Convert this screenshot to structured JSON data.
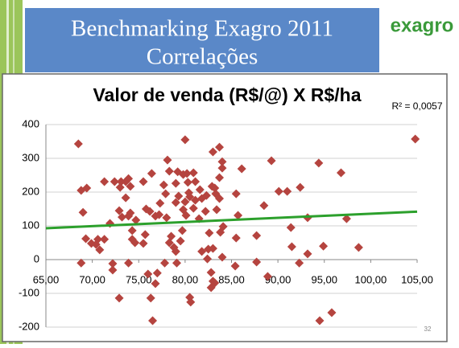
{
  "slide": {
    "title_lines": [
      "Benchmarking Exagro 2011",
      "Correlações"
    ],
    "logo": "exagro",
    "page_number": 32
  },
  "chart_data": {
    "type": "scatter",
    "title": "Valor de venda (R$/@) X R$/ha",
    "annotation": "R² = 0,0057",
    "color": "#b5443f",
    "x": [
      68.5,
      68.8,
      69.0,
      69.4,
      68.8,
      69.3,
      69.9,
      70.4,
      70.6,
      70.8,
      71.3,
      71.3,
      71.9,
      72.4,
      72.2,
      72.2,
      72.9,
      73.1,
      73.0,
      73.2,
      73.6,
      73.6,
      73.9,
      74.1,
      73.9,
      73.9,
      74.1,
      74.3,
      74.3,
      74.7,
      74.6,
      72.9,
      75.5,
      75.5,
      75.7,
      75.8,
      76.2,
      76.0,
      76.4,
      76.3,
      76.5,
      76.8,
      77.0,
      76.8,
      77.2,
      77.3,
      77.7,
      77.8,
      77.9,
      78.0,
      78.1,
      78.3,
      78.3,
      78.5,
      78.8,
      79.0,
      79.1,
      79.0,
      79.0,
      79.3,
      79.2,
      79.5,
      79.7,
      79.8,
      79.8,
      80.0,
      80.0,
      80.1,
      80.2,
      80.3,
      80.4,
      80.5,
      80.5,
      80.6,
      80.9,
      81.1,
      80.9,
      81.1,
      81.5,
      81.6,
      81.8,
      81.8,
      82.2,
      82.3,
      82.4,
      82.5,
      82.6,
      82.8,
      82.8,
      83.0,
      82.9,
      83.0,
      83.2,
      83.0,
      83.2,
      83.3,
      83.4,
      83.7,
      83.7,
      83.7,
      84.0,
      84.0,
      83.8,
      84.1,
      84.0,
      85.5,
      85.5,
      85.4,
      85.7,
      86.1,
      87.7,
      87.7,
      88.5,
      88.9,
      89.3,
      90.1,
      91.0,
      91.4,
      91.5,
      92.3,
      92.4,
      93.2,
      93.2,
      94.4,
      94.5,
      94.9,
      95.8,
      96.8,
      97.4,
      98.7,
      104.8
    ],
    "values": [
      343,
      205,
      140,
      212,
      -10,
      62,
      48,
      45,
      60,
      29,
      60,
      231,
      107,
      231,
      -12,
      -31,
      145,
      231,
      214,
      126,
      183,
      231,
      240,
      217,
      -10,
      129,
      138,
      86,
      60,
      117,
      50,
      -114,
      48,
      231,
      74,
      150,
      143,
      -43,
      255,
      -114,
      -181,
      -71,
      -40,
      129,
      133,
      167,
      221,
      -10,
      195,
      124,
      295,
      262,
      50,
      69,
      36,
      24,
      -10,
      169,
      226,
      188,
      260,
      55,
      86,
      148,
      252,
      355,
      171,
      131,
      255,
      229,
      198,
      186,
      -112,
      -126,
      152,
      176,
      257,
      231,
      121,
      207,
      181,
      24,
      143,
      190,
      2,
      31,
      79,
      -38,
      -83,
      -64,
      217,
      33,
      212,
      319,
      -69,
      195,
      148,
      333,
      243,
      181,
      290,
      271,
      81,
      98,
      7,
      195,
      64,
      -19,
      131,
      269,
      -7,
      71,
      160,
      -50,
      293,
      202,
      202,
      95,
      38,
      -10,
      214,
      124,
      17,
      286,
      -181,
      40,
      -157,
      257,
      121,
      36,
      357
    ],
    "trendline": {
      "color": "#2ca02c",
      "x": [
        65,
        105
      ],
      "values": [
        93,
        142
      ]
    },
    "xlim": [
      65,
      105
    ],
    "ylim": [
      -200,
      400
    ],
    "xticks": [
      {
        "value": 65,
        "label": "65,00"
      },
      {
        "value": 70,
        "label": "70,00"
      },
      {
        "value": 75,
        "label": "75,00"
      },
      {
        "value": 80,
        "label": "80,00"
      },
      {
        "value": 85,
        "label": "85,00"
      },
      {
        "value": 90,
        "label": "90,00"
      },
      {
        "value": 95,
        "label": "95,00"
      },
      {
        "value": 100,
        "label": "100,00"
      },
      {
        "value": 105,
        "label": "105,00"
      }
    ],
    "yticks": [
      -200,
      -100,
      0,
      100,
      200,
      300,
      400
    ],
    "grid": true
  }
}
